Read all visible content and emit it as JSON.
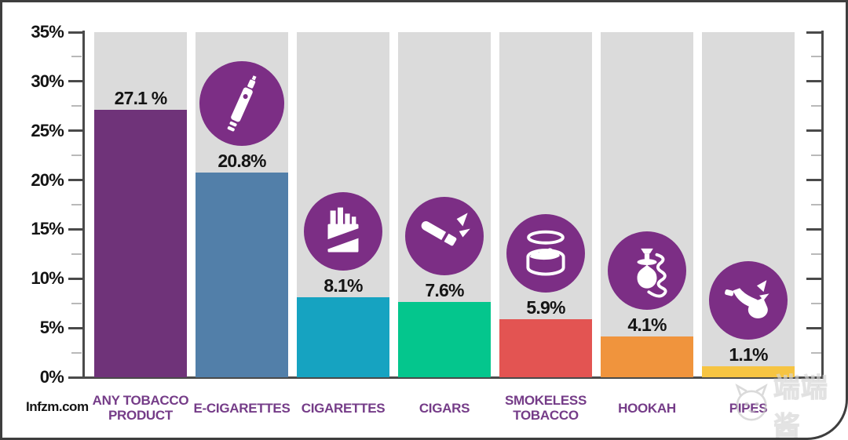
{
  "source": {
    "label": "Infzm.com"
  },
  "watermark": {
    "text": "端端酱",
    "icon": "cat-face-icon",
    "color": "#C2C2C2"
  },
  "chart_data": {
    "type": "bar",
    "title": "",
    "xlabel": "",
    "ylabel": "",
    "categories": [
      "ANY TOBACCO\nPRODUCT",
      "E-CIGARETTES",
      "CIGARETTES",
      "CIGARS",
      "SMOKELESS\nTOBACCO",
      "HOOKAH",
      "PIPES"
    ],
    "series": [
      {
        "name": "percent-of-use",
        "values": [
          27.1,
          20.8,
          8.1,
          7.6,
          5.9,
          4.1,
          1.1
        ]
      }
    ],
    "value_labels": [
      "27.1 %",
      "20.8%",
      "8.1%",
      "7.6%",
      "5.9%",
      "4.1%",
      "1.1%"
    ],
    "bar_colors": [
      "#6F3379",
      "#527FA9",
      "#16A3C1",
      "#04C68D",
      "#E35452",
      "#F0943D",
      "#F6C442"
    ],
    "icons": [
      null,
      "e-cigarette-icon",
      "cigarette-pack-icon",
      "cigar-icon",
      "smokeless-tin-icon",
      "hookah-icon",
      "pipe-icon"
    ],
    "icon_circle_color": "#7C2E85",
    "category_label_color": "#753C88",
    "column_bg_color": "#DBDBDB",
    "ylim": [
      0,
      35
    ],
    "ytick_major_interval": 5,
    "ytick_minor_interval": 2.5,
    "yticks": [
      "35%",
      "30%",
      "25%",
      "20%",
      "15%",
      "10%",
      "5%",
      "0%"
    ],
    "grid": false,
    "legend": false,
    "axes": "left, right and bottom frame with inward right ticks"
  }
}
